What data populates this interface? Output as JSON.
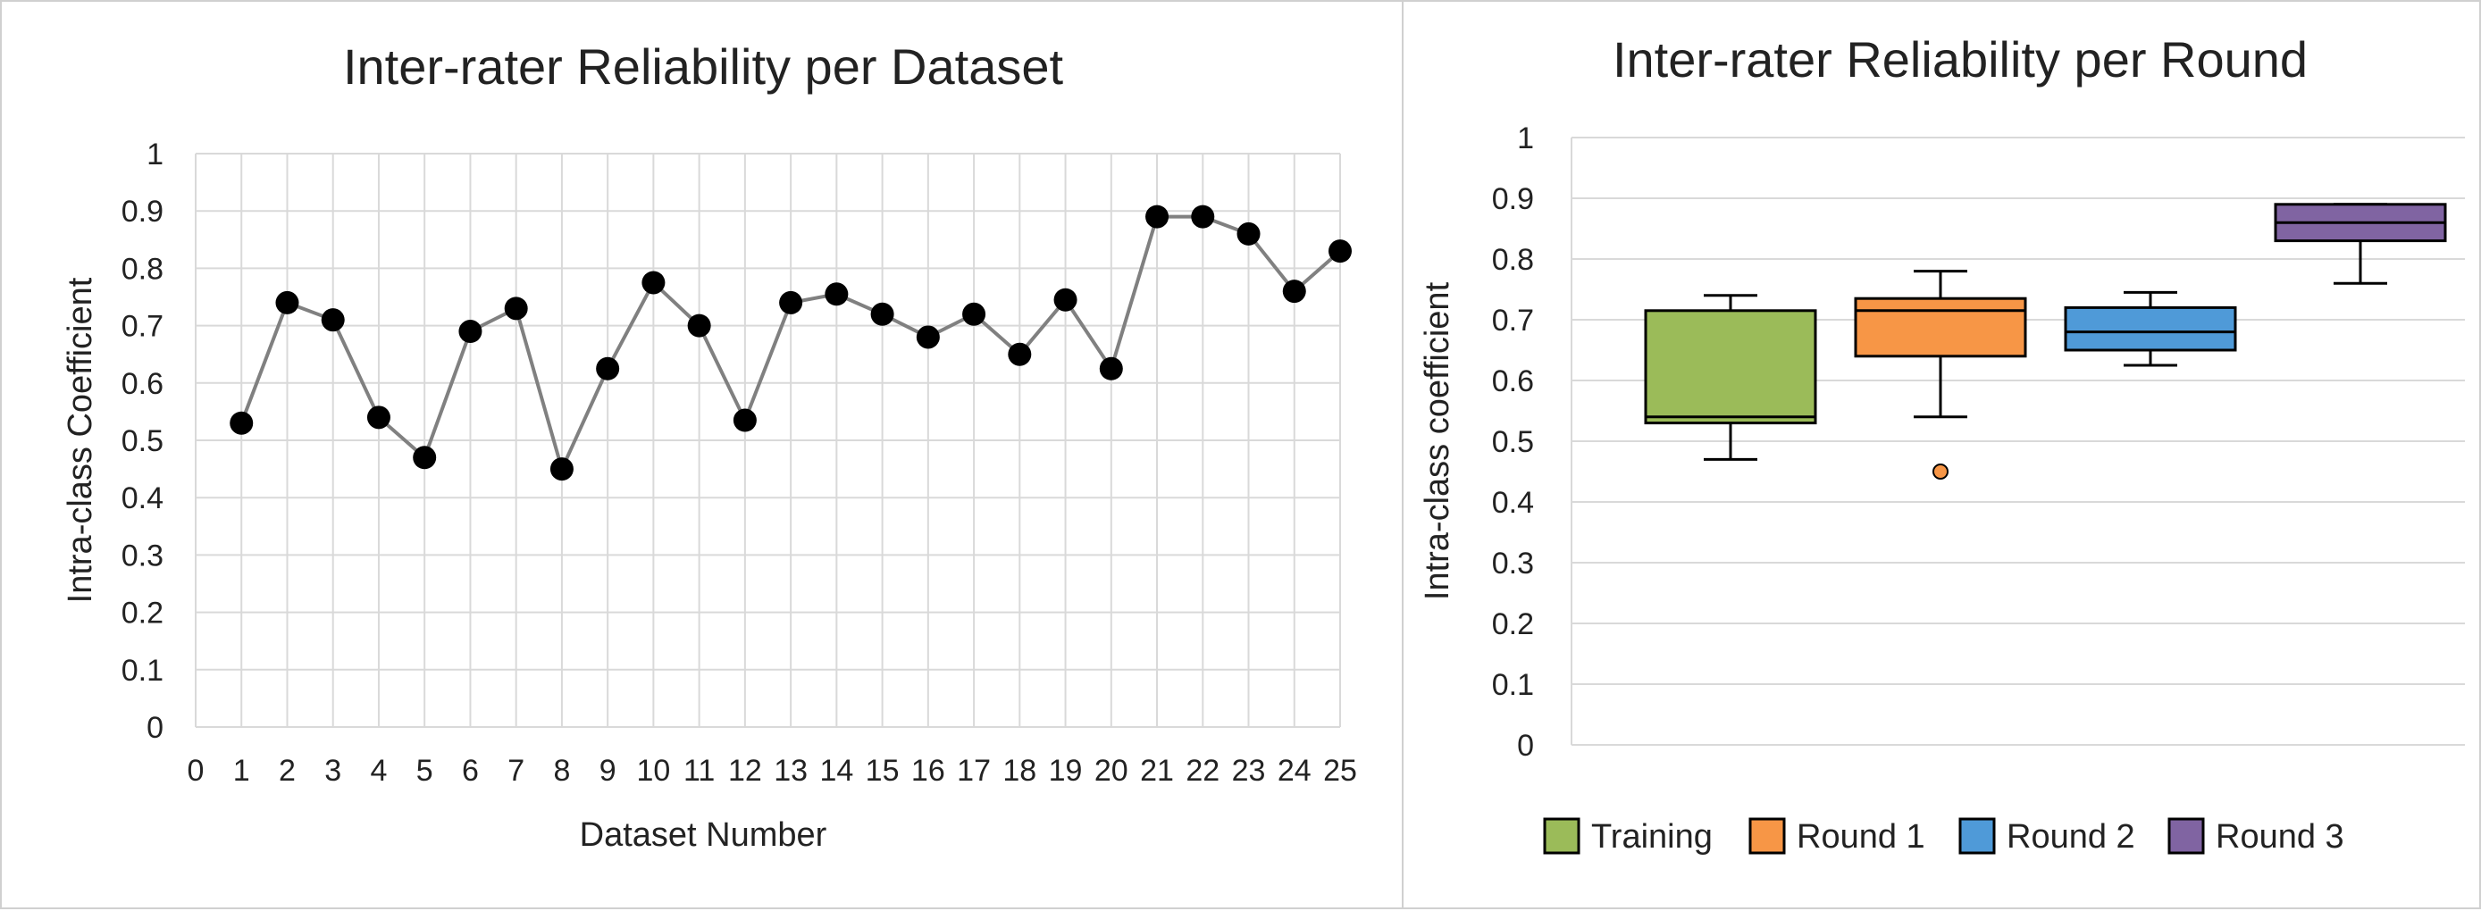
{
  "chart_data": [
    {
      "type": "line",
      "title": "Inter-rater Reliability per Dataset",
      "xlabel": "Dataset Number",
      "ylabel": "Intra-class Coefficient",
      "xlim": [
        0,
        25
      ],
      "ylim": [
        0,
        1
      ],
      "x_ticks": [
        "0",
        "1",
        "2",
        "3",
        "4",
        "5",
        "6",
        "7",
        "8",
        "9",
        "10",
        "11",
        "12",
        "13",
        "14",
        "15",
        "16",
        "17",
        "18",
        "19",
        "20",
        "21",
        "22",
        "23",
        "24",
        "25"
      ],
      "y_ticks": [
        "0",
        "0.1",
        "0.2",
        "0.3",
        "0.4",
        "0.5",
        "0.6",
        "0.7",
        "0.8",
        "0.9",
        "1"
      ],
      "grid": true,
      "x": [
        1,
        2,
        3,
        4,
        5,
        6,
        7,
        8,
        9,
        10,
        11,
        12,
        13,
        14,
        15,
        16,
        17,
        18,
        19,
        20,
        21,
        22,
        23,
        24,
        25
      ],
      "y": [
        0.53,
        0.74,
        0.71,
        0.54,
        0.47,
        0.69,
        0.73,
        0.45,
        0.625,
        0.775,
        0.7,
        0.535,
        0.74,
        0.755,
        0.72,
        0.68,
        0.72,
        0.65,
        0.745,
        0.625,
        0.89,
        0.89,
        0.86,
        0.76,
        0.83
      ],
      "colors": {
        "line": "#808080",
        "marker": "#000000",
        "grid": "#d9d9d9"
      }
    },
    {
      "type": "box",
      "title": "Inter-rater Reliability per Round",
      "ylabel": "Intra-class coefficient",
      "ylim": [
        0,
        1
      ],
      "y_ticks": [
        "0",
        "0.1",
        "0.2",
        "0.3",
        "0.4",
        "0.5",
        "0.6",
        "0.7",
        "0.8",
        "0.9",
        "1"
      ],
      "grid": true,
      "legend": "bottom",
      "series": [
        {
          "name": "Training",
          "min": 0.47,
          "q1": 0.53,
          "median": 0.54,
          "q3": 0.715,
          "max": 0.74,
          "outliers": [],
          "color": "#9BBB59"
        },
        {
          "name": "Round 1",
          "min": 0.54,
          "q1": 0.64,
          "median": 0.715,
          "q3": 0.735,
          "max": 0.78,
          "outliers": [
            0.45
          ],
          "color": "#F79646"
        },
        {
          "name": "Round 2",
          "min": 0.625,
          "q1": 0.65,
          "median": 0.68,
          "q3": 0.72,
          "max": 0.745,
          "outliers": [],
          "color": "#4F9AD8"
        },
        {
          "name": "Round 3",
          "min": 0.76,
          "q1": 0.83,
          "median": 0.86,
          "q3": 0.89,
          "max": 0.89,
          "outliers": [],
          "color": "#8064A2"
        }
      ]
    }
  ]
}
